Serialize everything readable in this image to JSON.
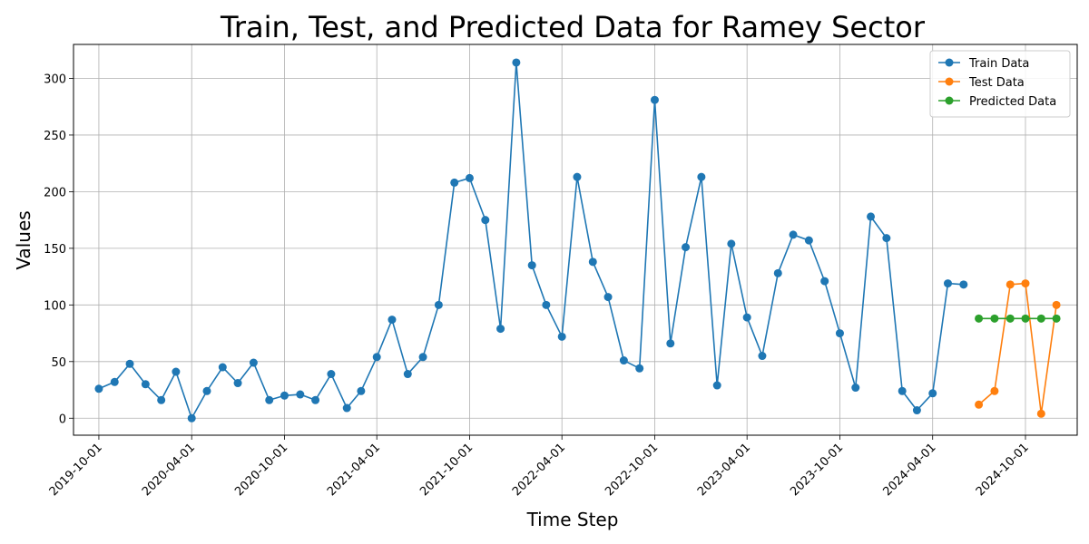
{
  "chart_data": {
    "type": "line",
    "title": "Train, Test, and Predicted Data for Ramey Sector",
    "xlabel": "Time Step",
    "ylabel": "Values",
    "ylim": [
      -15,
      330
    ],
    "xlim": [
      "2019-08-12",
      "2025-01-11"
    ],
    "grid": true,
    "legend_position": "top-right",
    "x_ticks": [
      "2019-10-01",
      "2020-04-01",
      "2020-10-01",
      "2021-04-01",
      "2021-10-01",
      "2022-04-01",
      "2022-10-01",
      "2023-04-01",
      "2023-10-01",
      "2024-04-01",
      "2024-10-01"
    ],
    "y_ticks": [
      0,
      50,
      100,
      150,
      200,
      250,
      300
    ],
    "series": [
      {
        "name": "Train Data",
        "color": "#1f77b4",
        "x": [
          "2019-10-01",
          "2019-11-01",
          "2019-12-01",
          "2020-01-01",
          "2020-02-01",
          "2020-03-01",
          "2020-04-01",
          "2020-05-01",
          "2020-06-01",
          "2020-07-01",
          "2020-08-01",
          "2020-09-01",
          "2020-10-01",
          "2020-11-01",
          "2020-12-01",
          "2021-01-01",
          "2021-02-01",
          "2021-03-01",
          "2021-04-01",
          "2021-05-01",
          "2021-06-01",
          "2021-07-01",
          "2021-08-01",
          "2021-09-01",
          "2021-10-01",
          "2021-11-01",
          "2021-12-01",
          "2022-01-01",
          "2022-02-01",
          "2022-03-01",
          "2022-04-01",
          "2022-05-01",
          "2022-06-01",
          "2022-07-01",
          "2022-08-01",
          "2022-09-01",
          "2022-10-01",
          "2022-11-01",
          "2022-12-01",
          "2023-01-01",
          "2023-02-01",
          "2023-03-01",
          "2023-04-01",
          "2023-05-01",
          "2023-06-01",
          "2023-07-01",
          "2023-08-01",
          "2023-09-01",
          "2023-10-01",
          "2023-11-01",
          "2023-12-01",
          "2024-01-01",
          "2024-02-01",
          "2024-03-01",
          "2024-04-01",
          "2024-05-01",
          "2024-06-01"
        ],
        "values": [
          26,
          32,
          48,
          30,
          16,
          41,
          0,
          24,
          45,
          31,
          49,
          16,
          20,
          21,
          16,
          39,
          9,
          24,
          54,
          87,
          39,
          54,
          100,
          208,
          212,
          175,
          79,
          314,
          135,
          100,
          72,
          213,
          138,
          107,
          51,
          44,
          281,
          66,
          151,
          213,
          29,
          154,
          89,
          55,
          128,
          162,
          157,
          121,
          75,
          27,
          178,
          159,
          24,
          7,
          22,
          119,
          118
        ]
      },
      {
        "name": "Test Data",
        "color": "#ff7f0e",
        "x": [
          "2024-07-01",
          "2024-08-01",
          "2024-09-01",
          "2024-10-01",
          "2024-11-01",
          "2024-12-01"
        ],
        "values": [
          12,
          24,
          118,
          119,
          4,
          100
        ]
      },
      {
        "name": "Predicted Data",
        "color": "#2ca02c",
        "x": [
          "2024-07-01",
          "2024-08-01",
          "2024-09-01",
          "2024-10-01",
          "2024-11-01",
          "2024-12-01"
        ],
        "values": [
          88,
          88,
          88,
          88,
          88,
          88
        ]
      }
    ]
  }
}
